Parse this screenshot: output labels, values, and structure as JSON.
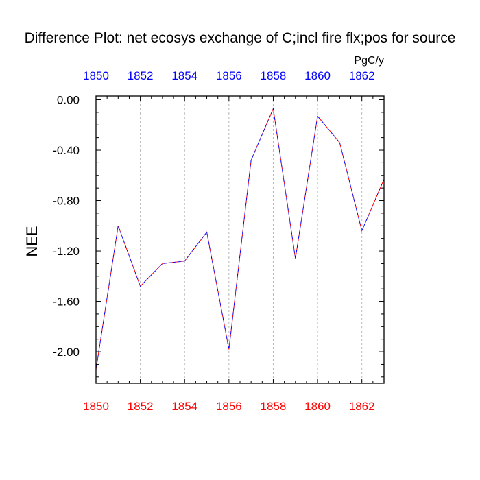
{
  "chart_data": {
    "type": "line",
    "title": "Difference Plot: net ecosys exchange of C;incl fire flx;pos for source",
    "units": "PgC/y",
    "ylabel": "NEE",
    "xlabel": "",
    "x": [
      1850,
      1851,
      1852,
      1853,
      1854,
      1855,
      1856,
      1857,
      1858,
      1859,
      1860,
      1861,
      1862,
      1863
    ],
    "series": [
      {
        "values": [
          -2.14,
          -1.0,
          -1.48,
          -1.3,
          -1.28,
          -1.05,
          -1.98,
          -0.48,
          -0.07,
          -1.26,
          -0.13,
          -0.34,
          -1.04,
          -0.63
        ],
        "color": "#ff0000",
        "dashed": true
      },
      {
        "values": [
          -2.14,
          -1.0,
          -1.48,
          -1.3,
          -1.28,
          -1.05,
          -1.98,
          -0.48,
          -0.07,
          -1.26,
          -0.13,
          -0.34,
          -1.04,
          -0.63
        ],
        "color": "#0000ff",
        "dashed": true
      }
    ],
    "xlim": [
      1850,
      1863
    ],
    "ylim": [
      -2.25,
      0.03
    ],
    "x_ticks": [
      1850,
      1852,
      1854,
      1856,
      1858,
      1860,
      1862
    ],
    "x_tick_labels_bottom": [
      "1850",
      "1852",
      "1854",
      "1856",
      "1858",
      "1860",
      "1862"
    ],
    "x_tick_labels_top": [
      "1850",
      "1852",
      "1854",
      "1856",
      "1858",
      "1860",
      "1862"
    ],
    "y_ticks": [
      0.0,
      -0.4,
      -0.8,
      -1.2,
      -1.6,
      -2.0
    ],
    "y_tick_labels": [
      "0.00",
      "-0.40",
      "-0.80",
      "-1.20",
      "-1.60",
      "-2.00"
    ],
    "grid": "vertical dashed at major x ticks",
    "bottom_tick_color": "#ff0000",
    "top_tick_color": "#0000ff"
  }
}
